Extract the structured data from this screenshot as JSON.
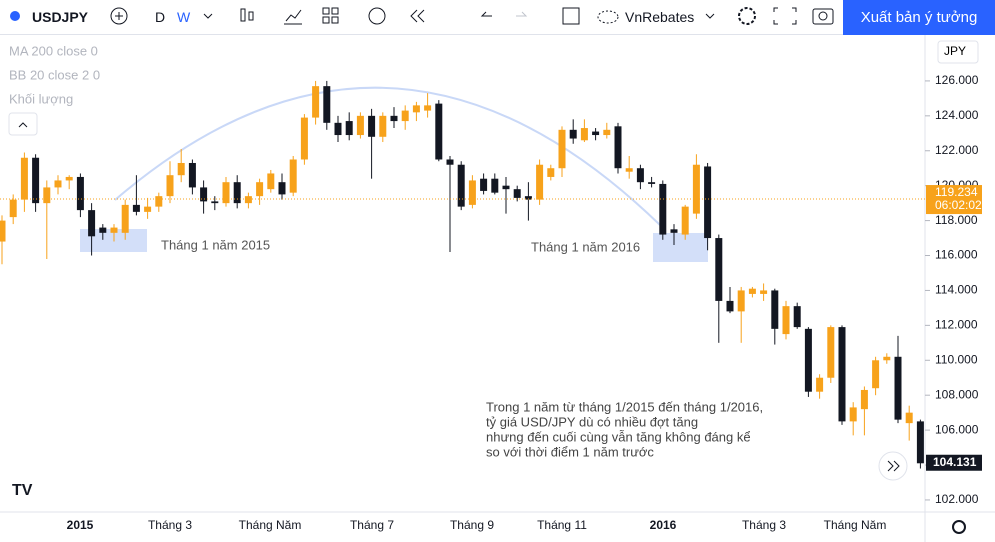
{
  "toolbar": {
    "symbol": "USDJPY",
    "interval_day": "D",
    "interval_week": "W",
    "account": "VnRebates",
    "publish": "Xuất bản ý tưởng"
  },
  "legend": [
    "MA 200 close 0",
    "BB 20 close 2 0",
    "Khối lượng"
  ],
  "currency": "JPY",
  "chart_data": {
    "type": "candlestick",
    "up_color": "#f7a21b",
    "down_color": "#131722",
    "open": [
      116.8,
      118.2,
      119.2,
      121.6,
      119.0,
      119.9,
      120.3,
      120.5,
      118.6,
      117.6,
      117.3,
      117.3,
      118.9,
      118.5,
      118.8,
      119.4,
      120.6,
      121.3,
      119.9,
      119.1,
      119.0,
      120.2,
      119.0,
      119.4,
      119.8,
      120.2,
      119.6,
      121.5,
      123.9,
      125.7,
      123.6,
      123.7,
      122.9,
      124.0,
      122.8,
      124.0,
      123.7,
      124.2,
      124.3,
      124.7,
      121.5,
      121.2,
      118.9,
      120.4,
      120.4,
      120.0,
      119.8,
      119.4,
      119.2,
      120.5,
      121.0,
      123.2,
      122.6,
      123.1,
      122.9,
      123.4,
      120.8,
      121.0,
      120.2,
      120.1,
      117.5,
      117.2,
      118.4,
      121.1,
      117.0,
      113.4,
      112.8,
      113.8,
      113.8,
      114.0,
      111.5,
      113.1,
      111.8,
      108.2,
      109.0,
      111.9,
      106.5,
      107.2,
      108.4,
      110.0,
      110.2,
      106.4,
      106.5
    ],
    "high": [
      118.3,
      119.5,
      121.9,
      121.8,
      120.3,
      120.6,
      120.6,
      120.7,
      119.0,
      117.8,
      117.8,
      119.2,
      120.6,
      119.3,
      119.6,
      121.4,
      122.1,
      121.5,
      120.3,
      119.4,
      120.5,
      120.6,
      119.6,
      120.4,
      120.9,
      120.7,
      121.7,
      124.1,
      126.0,
      126.0,
      124.0,
      124.2,
      124.2,
      124.4,
      124.2,
      124.5,
      124.6,
      124.8,
      125.3,
      124.9,
      121.7,
      121.4,
      120.6,
      120.7,
      120.7,
      120.5,
      120.0,
      120.2,
      121.5,
      121.2,
      123.4,
      123.8,
      123.8,
      123.3,
      123.6,
      123.6,
      121.7,
      121.2,
      120.5,
      120.3,
      117.8,
      118.9,
      121.8,
      121.3,
      117.2,
      114.2,
      114.2,
      114.2,
      114.4,
      114.1,
      113.4,
      113.3,
      111.9,
      109.2,
      112.0,
      112.0,
      107.6,
      108.5,
      110.2,
      110.4,
      111.4,
      107.4,
      106.6
    ],
    "low": [
      115.5,
      117.8,
      118.5,
      118.5,
      115.8,
      119.5,
      119.8,
      118.2,
      116.0,
      116.9,
      116.8,
      116.9,
      118.3,
      118.1,
      118.5,
      119.0,
      120.2,
      119.5,
      118.4,
      118.6,
      118.8,
      118.7,
      118.7,
      118.9,
      119.6,
      119.2,
      119.4,
      121.2,
      123.5,
      123.2,
      122.5,
      122.6,
      122.7,
      120.4,
      122.5,
      123.3,
      123.2,
      123.7,
      123.9,
      121.4,
      116.2,
      118.6,
      118.7,
      119.5,
      119.5,
      118.4,
      119.1,
      118.0,
      118.9,
      120.3,
      120.5,
      122.4,
      122.5,
      122.6,
      122.7,
      120.7,
      120.4,
      119.8,
      119.9,
      116.9,
      116.6,
      116.9,
      118.1,
      116.3,
      111.0,
      112.7,
      111.0,
      113.6,
      113.4,
      110.9,
      111.2,
      111.8,
      107.9,
      107.8,
      108.7,
      106.3,
      105.7,
      105.7,
      108.0,
      109.8,
      106.4,
      105.4,
      103.8
    ],
    "close": [
      118.0,
      119.2,
      121.6,
      119.0,
      119.9,
      120.3,
      120.5,
      118.6,
      117.1,
      117.3,
      117.6,
      118.9,
      118.5,
      118.8,
      119.4,
      120.6,
      121.3,
      119.9,
      119.1,
      119.0,
      120.2,
      119.0,
      119.4,
      120.2,
      120.7,
      119.5,
      121.5,
      123.9,
      125.7,
      123.6,
      122.9,
      122.9,
      124.0,
      122.8,
      124.0,
      123.7,
      124.3,
      124.6,
      124.6,
      121.5,
      121.2,
      118.8,
      120.3,
      119.7,
      119.6,
      119.8,
      119.3,
      119.2,
      121.2,
      121.0,
      123.2,
      122.7,
      123.3,
      122.9,
      123.2,
      121.0,
      121.0,
      120.2,
      120.1,
      117.2,
      117.3,
      118.8,
      121.2,
      117.0,
      113.4,
      112.8,
      114.0,
      114.1,
      114.0,
      111.8,
      113.1,
      111.9,
      108.2,
      109.0,
      111.9,
      106.5,
      107.3,
      108.3,
      110.0,
      110.2,
      106.6,
      107.0,
      104.1
    ],
    "x_labels": [
      "2015",
      "Tháng 3",
      "Tháng Năm",
      "Tháng 7",
      "Tháng 9",
      "Tháng 11",
      "2016",
      "Tháng 3",
      "Tháng Năm"
    ],
    "ylim": [
      101.31,
      128.63
    ],
    "yticks": [
      {
        "value": 102,
        "label": "102.000"
      },
      {
        "value": 104,
        "label": "104.000"
      },
      {
        "value": 106,
        "label": "106.000"
      },
      {
        "value": 108,
        "label": "108.000"
      },
      {
        "value": 110,
        "label": "110.000"
      },
      {
        "value": 112,
        "label": "112.000"
      },
      {
        "value": 114,
        "label": "114.000"
      },
      {
        "value": 116,
        "label": "116.000"
      },
      {
        "value": 118,
        "label": "118.000"
      },
      {
        "value": 120,
        "label": "120.000"
      },
      {
        "value": 122,
        "label": "122.000"
      },
      {
        "value": 124,
        "label": "124.000"
      },
      {
        "value": 126,
        "label": "126.000"
      }
    ],
    "ref_price": 119.234,
    "ref_countdown": "06:02:02",
    "last_price": 104.131,
    "annotations": [
      "Tháng 1 năm 2015",
      "Tháng 1 năm 2016"
    ],
    "note_lines": [
      "Trong 1 năm từ tháng 1/2015 đến tháng 1/2016,",
      "tỷ giá USD/JPY dù có nhiều đợt tăng",
      "nhưng đến cuối cùng vẫn tăng không đáng kể",
      "so với thời điểm 1 năm trước"
    ]
  }
}
